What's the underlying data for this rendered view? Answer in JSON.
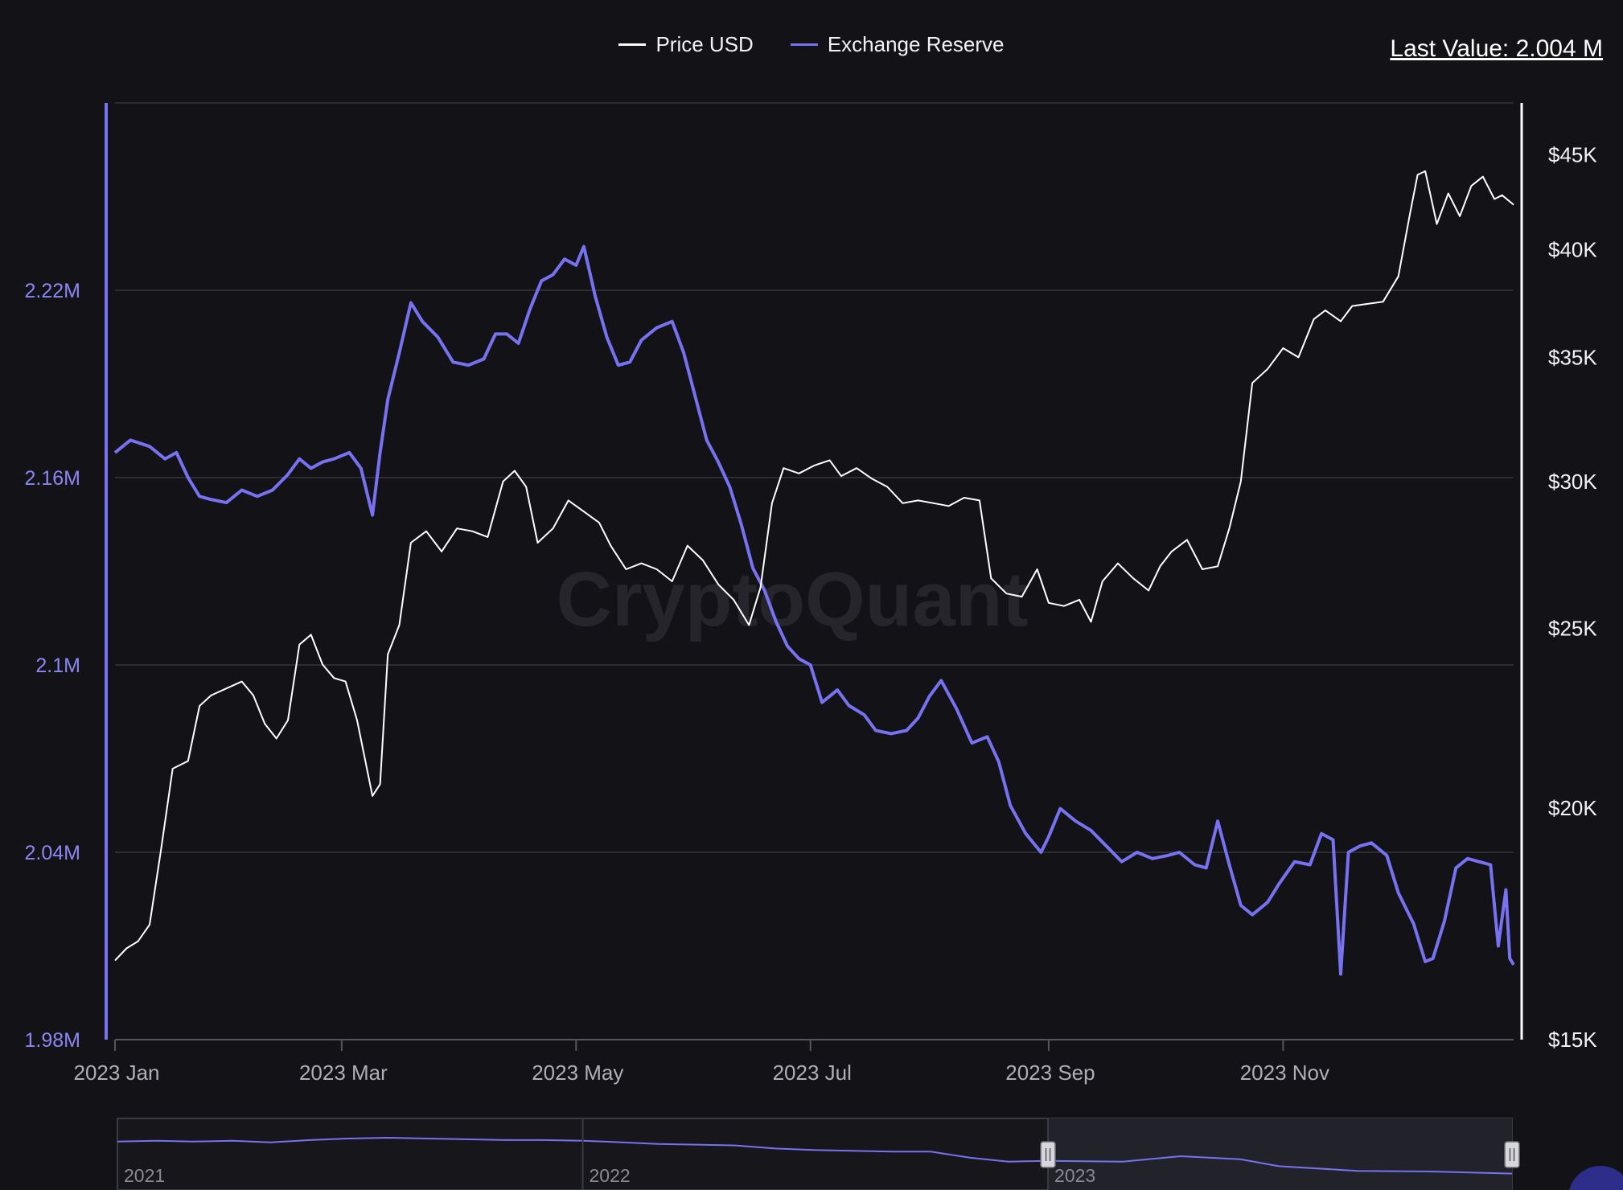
{
  "legend": {
    "price_label": "Price USD",
    "reserve_label": "Exchange Reserve"
  },
  "last_value": "Last Value: 2.004 M",
  "watermark": "CryptoQuant",
  "colors": {
    "background": "#131317",
    "price": "#ffffff",
    "reserve": "#7772f2",
    "grid": "#2c2c33",
    "axis_text": "#aeaeb5",
    "left_axis_text": "#8b86f5"
  },
  "chart_data": {
    "type": "line",
    "x_start": "2023-01-01",
    "x_end": "2023-12-31",
    "x_ticks": [
      {
        "date": "2023-01-01",
        "label": "2023 Jan"
      },
      {
        "date": "2023-03-01",
        "label": "2023 Mar"
      },
      {
        "date": "2023-05-01",
        "label": "2023 May"
      },
      {
        "date": "2023-07-01",
        "label": "2023 Jul"
      },
      {
        "date": "2023-09-01",
        "label": "2023 Sep"
      },
      {
        "date": "2023-11-01",
        "label": "2023 Nov"
      }
    ],
    "left_axis": {
      "ylim": [
        1.98,
        2.28
      ],
      "ticks": [
        {
          "value": 1.98,
          "label": "1.98M"
        },
        {
          "value": 2.04,
          "label": "2.04M"
        },
        {
          "value": 2.1,
          "label": "2.1M"
        },
        {
          "value": 2.16,
          "label": "2.16M"
        },
        {
          "value": 2.22,
          "label": "2.22M"
        }
      ]
    },
    "right_axis": {
      "scale": "log",
      "ylim": [
        15000,
        48000
      ],
      "ticks": [
        {
          "value": 15000,
          "label": "$15K"
        },
        {
          "value": 20000,
          "label": "$20K"
        },
        {
          "value": 25000,
          "label": "$25K"
        },
        {
          "value": 30000,
          "label": "$30K"
        },
        {
          "value": 35000,
          "label": "$35K"
        },
        {
          "value": 40000,
          "label": "$40K"
        },
        {
          "value": 45000,
          "label": "$45K"
        }
      ]
    },
    "series": [
      {
        "name": "Exchange Reserve",
        "axis": "left",
        "unit": "M",
        "points": [
          [
            "2023-01-01",
            2.168
          ],
          [
            "2023-01-05",
            2.172
          ],
          [
            "2023-01-10",
            2.17
          ],
          [
            "2023-01-14",
            2.166
          ],
          [
            "2023-01-17",
            2.168
          ],
          [
            "2023-01-20",
            2.16
          ],
          [
            "2023-01-23",
            2.154
          ],
          [
            "2023-01-26",
            2.153
          ],
          [
            "2023-01-30",
            2.152
          ],
          [
            "2023-02-03",
            2.156
          ],
          [
            "2023-02-07",
            2.154
          ],
          [
            "2023-02-11",
            2.156
          ],
          [
            "2023-02-15",
            2.161
          ],
          [
            "2023-02-18",
            2.166
          ],
          [
            "2023-02-21",
            2.163
          ],
          [
            "2023-02-24",
            2.165
          ],
          [
            "2023-02-27",
            2.166
          ],
          [
            "2023-03-03",
            2.168
          ],
          [
            "2023-03-06",
            2.163
          ],
          [
            "2023-03-09",
            2.148
          ],
          [
            "2023-03-11",
            2.168
          ],
          [
            "2023-03-13",
            2.185
          ],
          [
            "2023-03-16",
            2.2
          ],
          [
            "2023-03-19",
            2.216
          ],
          [
            "2023-03-22",
            2.21
          ],
          [
            "2023-03-26",
            2.205
          ],
          [
            "2023-03-30",
            2.197
          ],
          [
            "2023-04-03",
            2.196
          ],
          [
            "2023-04-07",
            2.198
          ],
          [
            "2023-04-10",
            2.206
          ],
          [
            "2023-04-13",
            2.206
          ],
          [
            "2023-04-16",
            2.203
          ],
          [
            "2023-04-19",
            2.214
          ],
          [
            "2023-04-22",
            2.223
          ],
          [
            "2023-04-25",
            2.225
          ],
          [
            "2023-04-28",
            2.23
          ],
          [
            "2023-05-01",
            2.228
          ],
          [
            "2023-05-03",
            2.234
          ],
          [
            "2023-05-06",
            2.218
          ],
          [
            "2023-05-09",
            2.205
          ],
          [
            "2023-05-12",
            2.196
          ],
          [
            "2023-05-15",
            2.197
          ],
          [
            "2023-05-18",
            2.204
          ],
          [
            "2023-05-22",
            2.208
          ],
          [
            "2023-05-26",
            2.21
          ],
          [
            "2023-05-29",
            2.2
          ],
          [
            "2023-06-01",
            2.186
          ],
          [
            "2023-06-04",
            2.172
          ],
          [
            "2023-06-07",
            2.165
          ],
          [
            "2023-06-10",
            2.157
          ],
          [
            "2023-06-13",
            2.145
          ],
          [
            "2023-06-16",
            2.131
          ],
          [
            "2023-06-19",
            2.124
          ],
          [
            "2023-06-22",
            2.114
          ],
          [
            "2023-06-25",
            2.106
          ],
          [
            "2023-06-28",
            2.102
          ],
          [
            "2023-07-01",
            2.1
          ],
          [
            "2023-07-04",
            2.088
          ],
          [
            "2023-07-08",
            2.092
          ],
          [
            "2023-07-11",
            2.087
          ],
          [
            "2023-07-15",
            2.084
          ],
          [
            "2023-07-18",
            2.079
          ],
          [
            "2023-07-22",
            2.078
          ],
          [
            "2023-07-26",
            2.079
          ],
          [
            "2023-07-29",
            2.083
          ],
          [
            "2023-08-01",
            2.09
          ],
          [
            "2023-08-04",
            2.095
          ],
          [
            "2023-08-08",
            2.086
          ],
          [
            "2023-08-12",
            2.075
          ],
          [
            "2023-08-16",
            2.077
          ],
          [
            "2023-08-19",
            2.069
          ],
          [
            "2023-08-22",
            2.055
          ],
          [
            "2023-08-26",
            2.046
          ],
          [
            "2023-08-30",
            2.04
          ],
          [
            "2023-09-01",
            2.045
          ],
          [
            "2023-09-04",
            2.054
          ],
          [
            "2023-09-08",
            2.05
          ],
          [
            "2023-09-12",
            2.047
          ],
          [
            "2023-09-16",
            2.042
          ],
          [
            "2023-09-20",
            2.037
          ],
          [
            "2023-09-24",
            2.04
          ],
          [
            "2023-09-28",
            2.038
          ],
          [
            "2023-10-02",
            2.039
          ],
          [
            "2023-10-05",
            2.04
          ],
          [
            "2023-10-09",
            2.036
          ],
          [
            "2023-10-12",
            2.035
          ],
          [
            "2023-10-15",
            2.05
          ],
          [
            "2023-10-18",
            2.036
          ],
          [
            "2023-10-21",
            2.023
          ],
          [
            "2023-10-24",
            2.02
          ],
          [
            "2023-10-28",
            2.024
          ],
          [
            "2023-10-31",
            2.03
          ],
          [
            "2023-11-04",
            2.037
          ],
          [
            "2023-11-08",
            2.036
          ],
          [
            "2023-11-11",
            2.046
          ],
          [
            "2023-11-14",
            2.044
          ],
          [
            "2023-11-16",
            2.001
          ],
          [
            "2023-11-18",
            2.04
          ],
          [
            "2023-11-21",
            2.042
          ],
          [
            "2023-11-24",
            2.043
          ],
          [
            "2023-11-28",
            2.039
          ],
          [
            "2023-12-01",
            2.027
          ],
          [
            "2023-12-05",
            2.017
          ],
          [
            "2023-12-08",
            2.005
          ],
          [
            "2023-12-10",
            2.006
          ],
          [
            "2023-12-13",
            2.018
          ],
          [
            "2023-12-16",
            2.035
          ],
          [
            "2023-12-19",
            2.038
          ],
          [
            "2023-12-22",
            2.037
          ],
          [
            "2023-12-25",
            2.036
          ],
          [
            "2023-12-27",
            2.01
          ],
          [
            "2023-12-29",
            2.028
          ],
          [
            "2023-12-30",
            2.006
          ],
          [
            "2023-12-31",
            2.004
          ]
        ]
      },
      {
        "name": "Price USD",
        "axis": "right",
        "unit": "USD",
        "points": [
          [
            "2023-01-01",
            16550
          ],
          [
            "2023-01-04",
            16800
          ],
          [
            "2023-01-07",
            16950
          ],
          [
            "2023-01-10",
            17300
          ],
          [
            "2023-01-13",
            19000
          ],
          [
            "2023-01-16",
            21000
          ],
          [
            "2023-01-20",
            21200
          ],
          [
            "2023-01-23",
            22700
          ],
          [
            "2023-01-26",
            23000
          ],
          [
            "2023-01-30",
            23200
          ],
          [
            "2023-02-03",
            23400
          ],
          [
            "2023-02-06",
            23000
          ],
          [
            "2023-02-09",
            22200
          ],
          [
            "2023-02-12",
            21800
          ],
          [
            "2023-02-15",
            22300
          ],
          [
            "2023-02-18",
            24500
          ],
          [
            "2023-02-21",
            24800
          ],
          [
            "2023-02-24",
            23900
          ],
          [
            "2023-02-27",
            23500
          ],
          [
            "2023-03-02",
            23400
          ],
          [
            "2023-03-05",
            22300
          ],
          [
            "2023-03-09",
            20300
          ],
          [
            "2023-03-11",
            20600
          ],
          [
            "2023-03-13",
            24200
          ],
          [
            "2023-03-16",
            25100
          ],
          [
            "2023-03-19",
            27800
          ],
          [
            "2023-03-23",
            28200
          ],
          [
            "2023-03-27",
            27500
          ],
          [
            "2023-03-31",
            28300
          ],
          [
            "2023-04-04",
            28200
          ],
          [
            "2023-04-08",
            28000
          ],
          [
            "2023-04-12",
            30000
          ],
          [
            "2023-04-15",
            30400
          ],
          [
            "2023-04-18",
            29800
          ],
          [
            "2023-04-21",
            27800
          ],
          [
            "2023-04-25",
            28300
          ],
          [
            "2023-04-29",
            29300
          ],
          [
            "2023-05-03",
            28900
          ],
          [
            "2023-05-07",
            28500
          ],
          [
            "2023-05-10",
            27700
          ],
          [
            "2023-05-14",
            26900
          ],
          [
            "2023-05-18",
            27100
          ],
          [
            "2023-05-22",
            26900
          ],
          [
            "2023-05-26",
            26500
          ],
          [
            "2023-05-30",
            27700
          ],
          [
            "2023-06-03",
            27200
          ],
          [
            "2023-06-07",
            26400
          ],
          [
            "2023-06-11",
            25900
          ],
          [
            "2023-06-15",
            25100
          ],
          [
            "2023-06-18",
            26300
          ],
          [
            "2023-06-21",
            29200
          ],
          [
            "2023-06-24",
            30500
          ],
          [
            "2023-06-28",
            30300
          ],
          [
            "2023-07-02",
            30600
          ],
          [
            "2023-07-06",
            30800
          ],
          [
            "2023-07-09",
            30200
          ],
          [
            "2023-07-13",
            30500
          ],
          [
            "2023-07-17",
            30100
          ],
          [
            "2023-07-21",
            29800
          ],
          [
            "2023-07-25",
            29200
          ],
          [
            "2023-07-29",
            29300
          ],
          [
            "2023-08-02",
            29200
          ],
          [
            "2023-08-06",
            29100
          ],
          [
            "2023-08-10",
            29400
          ],
          [
            "2023-08-14",
            29300
          ],
          [
            "2023-08-17",
            26600
          ],
          [
            "2023-08-21",
            26100
          ],
          [
            "2023-08-25",
            26000
          ],
          [
            "2023-08-29",
            26900
          ],
          [
            "2023-09-01",
            25800
          ],
          [
            "2023-09-05",
            25700
          ],
          [
            "2023-09-09",
            25900
          ],
          [
            "2023-09-12",
            25200
          ],
          [
            "2023-09-15",
            26500
          ],
          [
            "2023-09-19",
            27100
          ],
          [
            "2023-09-23",
            26600
          ],
          [
            "2023-09-27",
            26200
          ],
          [
            "2023-09-30",
            27000
          ],
          [
            "2023-10-03",
            27500
          ],
          [
            "2023-10-07",
            27900
          ],
          [
            "2023-10-11",
            26900
          ],
          [
            "2023-10-15",
            27000
          ],
          [
            "2023-10-18",
            28300
          ],
          [
            "2023-10-21",
            30000
          ],
          [
            "2023-10-24",
            33900
          ],
          [
            "2023-10-28",
            34500
          ],
          [
            "2023-11-01",
            35400
          ],
          [
            "2023-11-05",
            35000
          ],
          [
            "2023-11-09",
            36700
          ],
          [
            "2023-11-12",
            37100
          ],
          [
            "2023-11-16",
            36600
          ],
          [
            "2023-11-19",
            37300
          ],
          [
            "2023-11-23",
            37400
          ],
          [
            "2023-11-27",
            37500
          ],
          [
            "2023-12-01",
            38700
          ],
          [
            "2023-12-04",
            41800
          ],
          [
            "2023-12-06",
            43900
          ],
          [
            "2023-12-08",
            44100
          ],
          [
            "2023-12-11",
            41300
          ],
          [
            "2023-12-14",
            42900
          ],
          [
            "2023-12-17",
            41700
          ],
          [
            "2023-12-20",
            43300
          ],
          [
            "2023-12-23",
            43800
          ],
          [
            "2023-12-26",
            42600
          ],
          [
            "2023-12-28",
            42800
          ],
          [
            "2023-12-31",
            42300
          ]
        ]
      }
    ],
    "navigator": {
      "labels": [
        "2021",
        "2022",
        "2023"
      ],
      "selected": [
        "2023-01-01",
        "2023-12-31"
      ],
      "reserve_points": [
        [
          "2021-01-01",
          2.42
        ],
        [
          "2021-02-01",
          2.43
        ],
        [
          "2021-03-01",
          2.42
        ],
        [
          "2021-04-01",
          2.43
        ],
        [
          "2021-05-01",
          2.41
        ],
        [
          "2021-06-01",
          2.44
        ],
        [
          "2021-07-01",
          2.46
        ],
        [
          "2021-08-01",
          2.47
        ],
        [
          "2021-09-01",
          2.46
        ],
        [
          "2021-10-01",
          2.45
        ],
        [
          "2021-11-01",
          2.44
        ],
        [
          "2021-12-01",
          2.44
        ],
        [
          "2022-01-01",
          2.43
        ],
        [
          "2022-02-01",
          2.41
        ],
        [
          "2022-03-01",
          2.39
        ],
        [
          "2022-04-01",
          2.38
        ],
        [
          "2022-05-01",
          2.37
        ],
        [
          "2022-06-01",
          2.33
        ],
        [
          "2022-07-01",
          2.31
        ],
        [
          "2022-08-01",
          2.3
        ],
        [
          "2022-09-01",
          2.29
        ],
        [
          "2022-10-01",
          2.29
        ],
        [
          "2022-11-01",
          2.21
        ],
        [
          "2022-12-01",
          2.16
        ],
        [
          "2023-01-01",
          2.17
        ],
        [
          "2023-03-01",
          2.16
        ],
        [
          "2023-04-15",
          2.23
        ],
        [
          "2023-06-01",
          2.19
        ],
        [
          "2023-07-01",
          2.1
        ],
        [
          "2023-09-01",
          2.04
        ],
        [
          "2023-11-01",
          2.03
        ],
        [
          "2023-12-31",
          2.004
        ]
      ]
    }
  }
}
